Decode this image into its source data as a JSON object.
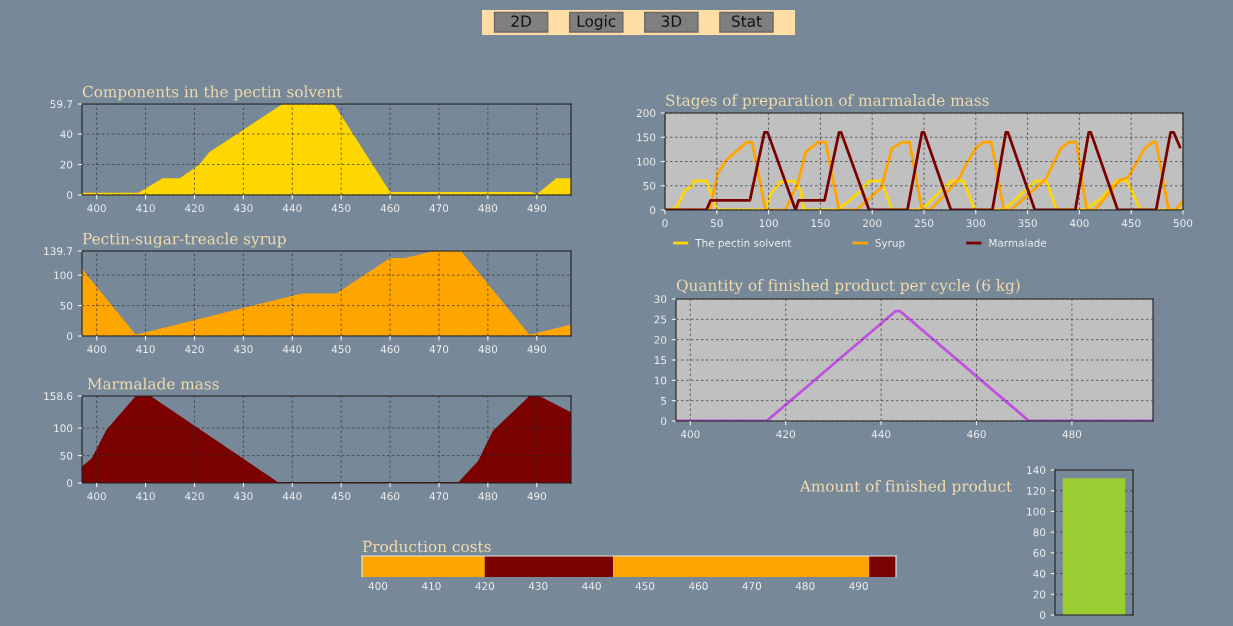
{
  "chart_data": [
    {
      "type": "other",
      "annotations": [
        "2D",
        "Logic",
        "3D",
        "Stat"
      ]
    },
    {
      "type": "area",
      "title": "Components in the pectin solvent",
      "x": [
        397,
        408.5,
        413.5,
        417,
        421,
        423,
        438,
        448.5,
        460,
        489,
        490,
        494,
        497
      ],
      "series": [
        {
          "color": "#ffd700",
          "values": [
            1.5,
            1.5,
            11,
            11,
            20,
            28,
            59.7,
            59.7,
            2,
            2,
            0.5,
            11,
            11
          ]
        }
      ],
      "xlim": [
        397,
        497
      ],
      "xticks": [
        400,
        410,
        420,
        430,
        440,
        450,
        460,
        470,
        480,
        490
      ],
      "ylim": [
        0,
        59.7
      ],
      "yticks": [
        0,
        20,
        40,
        59.7
      ],
      "grid": true
    },
    {
      "type": "area",
      "title": "Pectin-sugar-treacle syrup",
      "x": [
        397,
        408,
        442,
        449,
        460,
        463,
        469,
        474.5,
        488.5,
        497
      ],
      "series": [
        {
          "color": "#ffa500",
          "values": [
            110,
            2,
            70,
            70,
            128,
            128,
            139.7,
            139.7,
            2,
            19
          ]
        }
      ],
      "xlim": [
        397,
        497
      ],
      "xticks": [
        400,
        410,
        420,
        430,
        440,
        450,
        460,
        470,
        480,
        490
      ],
      "ylim": [
        0,
        139.7
      ],
      "yticks": [
        0,
        50,
        100,
        139.7
      ],
      "grid": true
    },
    {
      "type": "area",
      "title": "Marmalade mass",
      "x": [
        397,
        399,
        402,
        408,
        411,
        437,
        474,
        478,
        481,
        488.5,
        490.5,
        497
      ],
      "series": [
        {
          "color": "#7b0000",
          "values": [
            30,
            45,
            97,
            158.6,
            158.6,
            2,
            2,
            40,
            95,
            158.6,
            158.6,
            129
          ]
        }
      ],
      "xlim": [
        397,
        497
      ],
      "xticks": [
        400,
        410,
        420,
        430,
        440,
        450,
        460,
        470,
        480,
        490
      ],
      "ylim": [
        0,
        158.6
      ],
      "yticks": [
        0,
        50,
        100,
        158.6
      ],
      "grid": true
    },
    {
      "type": "line",
      "title": "Stages of preparation of marmalade mass",
      "series": [
        {
          "name": "The pectin solvent",
          "color": "#ffd700",
          "x": [
            0,
            11,
            19,
            26,
            28,
            40,
            46,
            50,
            97,
            102,
            111,
            124,
            131,
            134,
            165,
            175,
            189,
            197,
            209,
            219,
            246,
            253,
            266,
            277,
            288,
            299,
            327,
            341,
            358,
            368,
            378,
            405,
            422,
            436,
            446,
            459,
            486,
            500
          ],
          "values": [
            0,
            4,
            40,
            49,
            60,
            60,
            25,
            0,
            0,
            33,
            58,
            60,
            40,
            0,
            0,
            14,
            40,
            60,
            60,
            0,
            0,
            11,
            40,
            60,
            60,
            0,
            0,
            27,
            60,
            60,
            0,
            0,
            25,
            60,
            60,
            0,
            0,
            0
          ]
        },
        {
          "name": "Syrup",
          "color": "#ffa500",
          "x": [
            0,
            43,
            51,
            60,
            70,
            79,
            84,
            97,
            116,
            128,
            136,
            148,
            155,
            168,
            185,
            209,
            219,
            229,
            236,
            248,
            256,
            283,
            290,
            300,
            307,
            315,
            327,
            334,
            368,
            382,
            390,
            397,
            407,
            415,
            439,
            447,
            463,
            471,
            474,
            486,
            493,
            500
          ],
          "values": [
            0,
            0,
            76,
            105,
            123,
            140,
            140,
            0,
            0,
            54,
            120,
            140,
            140,
            0,
            0,
            47,
            127,
            140,
            140,
            0,
            0,
            62,
            91,
            127,
            140,
            140,
            0,
            0,
            65,
            127,
            140,
            140,
            0,
            0,
            62,
            67,
            127,
            140,
            140,
            0,
            0,
            18
          ]
        },
        {
          "name": "Marmalade",
          "color": "#7b0000",
          "x": [
            0,
            40,
            44,
            82,
            96,
            99,
            126,
            129,
            154,
            168,
            170,
            197,
            234,
            248,
            250,
            276,
            316,
            329,
            331,
            357,
            396,
            409,
            411,
            437,
            474,
            488,
            491,
            497
          ],
          "values": [
            0,
            0,
            20,
            20,
            160,
            160,
            0,
            20,
            20,
            160,
            160,
            0,
            0,
            160,
            160,
            0,
            0,
            160,
            160,
            0,
            0,
            160,
            160,
            0,
            0,
            160,
            160,
            130
          ]
        }
      ],
      "xlim": [
        0,
        500
      ],
      "xticks": [
        0,
        50,
        100,
        150,
        200,
        250,
        300,
        350,
        400,
        450,
        500
      ],
      "ylim": [
        0,
        200
      ],
      "yticks": [
        0,
        50,
        100,
        150,
        200
      ],
      "grid": true,
      "legend": "bottom"
    },
    {
      "type": "line",
      "title": "Quantity of finished product per cycle (6 kg)",
      "x": [
        397,
        416,
        443,
        444,
        471,
        497
      ],
      "series": [
        {
          "color": "#c050e0",
          "values": [
            0,
            0,
            27,
            27,
            0,
            0
          ]
        }
      ],
      "xlim": [
        397,
        497
      ],
      "xticks": [
        400,
        420,
        440,
        460,
        480
      ],
      "ylim": [
        0,
        30
      ],
      "yticks": [
        0,
        5,
        10,
        15,
        20,
        25,
        30
      ],
      "grid": true
    },
    {
      "type": "bar",
      "title": "Production costs",
      "orientation": "horizontal",
      "categories": [
        null
      ],
      "series": [
        {
          "color": "#ffa500",
          "base": [
            397
          ],
          "values": [
            23
          ]
        },
        {
          "color": "#7b0000",
          "base": [
            420
          ],
          "values": [
            24
          ]
        },
        {
          "color": "#ffa500",
          "base": [
            444
          ],
          "values": [
            48
          ]
        },
        {
          "color": "#7b0000",
          "base": [
            492
          ],
          "values": [
            5
          ]
        }
      ],
      "xlim": [
        397,
        497
      ],
      "xticks": [
        400,
        410,
        420,
        430,
        440,
        450,
        460,
        470,
        480,
        490
      ],
      "grid": "x"
    },
    {
      "type": "bar",
      "title": "Amount of finished product",
      "categories": [
        null
      ],
      "series": [
        {
          "color": "#9acd32",
          "values": [
            132
          ]
        }
      ],
      "ylim": [
        0,
        140
      ],
      "yticks": [
        0,
        20,
        40,
        60,
        80,
        100,
        120,
        140
      ],
      "grid": "y"
    }
  ]
}
